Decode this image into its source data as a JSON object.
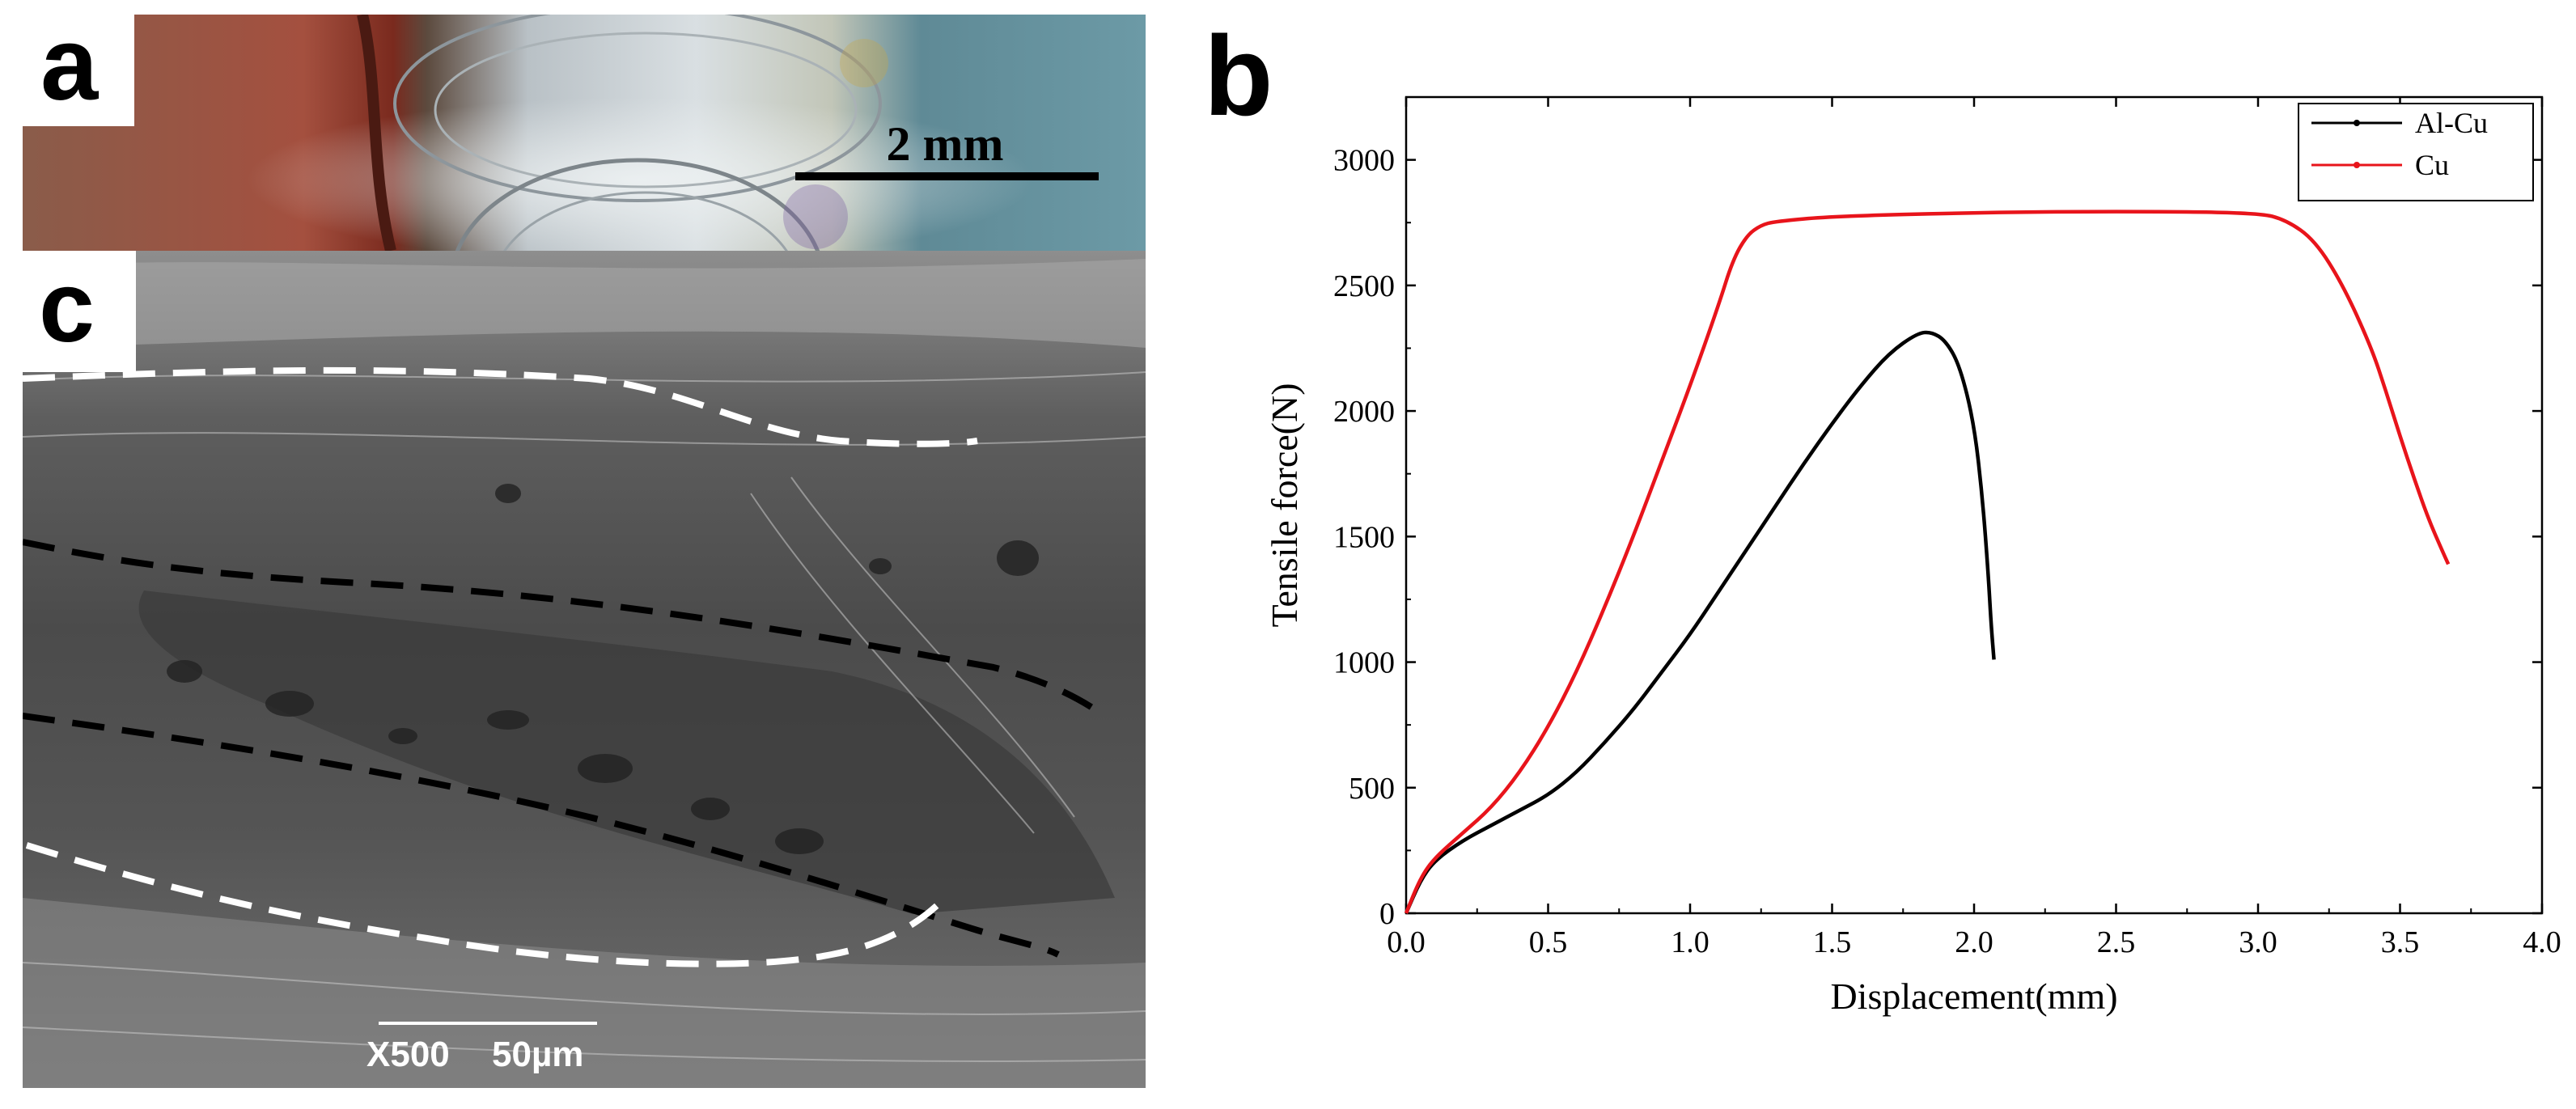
{
  "panels": {
    "a": {
      "letter": "a",
      "scale_bar_label": "2 mm"
    },
    "b": {
      "letter": "b"
    },
    "c": {
      "letter": "c",
      "magnification_label": "X500",
      "scale_bar_label": "50µm"
    }
  },
  "chart_data": {
    "type": "line",
    "title": "",
    "xlabel": "Displacement(mm)",
    "ylabel": "Tensile force(N)",
    "xlim": [
      0,
      4.0
    ],
    "ylim": [
      0,
      3250
    ],
    "xticks": [
      0.0,
      0.5,
      1.0,
      1.5,
      2.0,
      2.5,
      3.0,
      3.5,
      4.0
    ],
    "xtick_labels": [
      "0.0",
      "0.5",
      "1.0",
      "1.5",
      "2.0",
      "2.5",
      "3.0",
      "3.5",
      "4.0"
    ],
    "yticks": [
      0,
      500,
      1000,
      1500,
      2000,
      2500,
      3000
    ],
    "ytick_labels": [
      "0",
      "500",
      "1000",
      "1500",
      "2000",
      "2500",
      "3000"
    ],
    "grid": false,
    "legend_position": "top-right",
    "series": [
      {
        "name": "Al-Cu",
        "color": "#000000",
        "x": [
          0,
          0.05,
          0.1,
          0.2,
          0.3,
          0.4,
          0.5,
          0.6,
          0.7,
          0.8,
          0.9,
          1.0,
          1.1,
          1.2,
          1.3,
          1.4,
          1.5,
          1.6,
          1.7,
          1.8,
          1.85,
          1.9,
          1.95,
          2.0,
          2.03,
          2.05,
          2.06,
          2.07
        ],
        "y": [
          0,
          130,
          210,
          290,
          350,
          410,
          470,
          560,
          680,
          810,
          960,
          1110,
          1280,
          1450,
          1620,
          1790,
          1950,
          2100,
          2230,
          2310,
          2315,
          2280,
          2180,
          1950,
          1650,
          1350,
          1150,
          1010
        ]
      },
      {
        "name": "Cu",
        "color": "#e8141b",
        "x": [
          0,
          0.05,
          0.1,
          0.2,
          0.3,
          0.4,
          0.5,
          0.6,
          0.7,
          0.8,
          0.9,
          1.0,
          1.1,
          1.15,
          1.2,
          1.25,
          1.3,
          1.5,
          2.0,
          2.5,
          3.0,
          3.1,
          3.2,
          3.3,
          3.4,
          3.45,
          3.5,
          3.55,
          3.6,
          3.65,
          3.67
        ],
        "y": [
          0,
          140,
          220,
          320,
          420,
          560,
          740,
          960,
          1220,
          1500,
          1800,
          2100,
          2420,
          2600,
          2700,
          2740,
          2755,
          2775,
          2790,
          2795,
          2790,
          2760,
          2680,
          2500,
          2250,
          2080,
          1900,
          1730,
          1570,
          1440,
          1390
        ]
      }
    ]
  }
}
